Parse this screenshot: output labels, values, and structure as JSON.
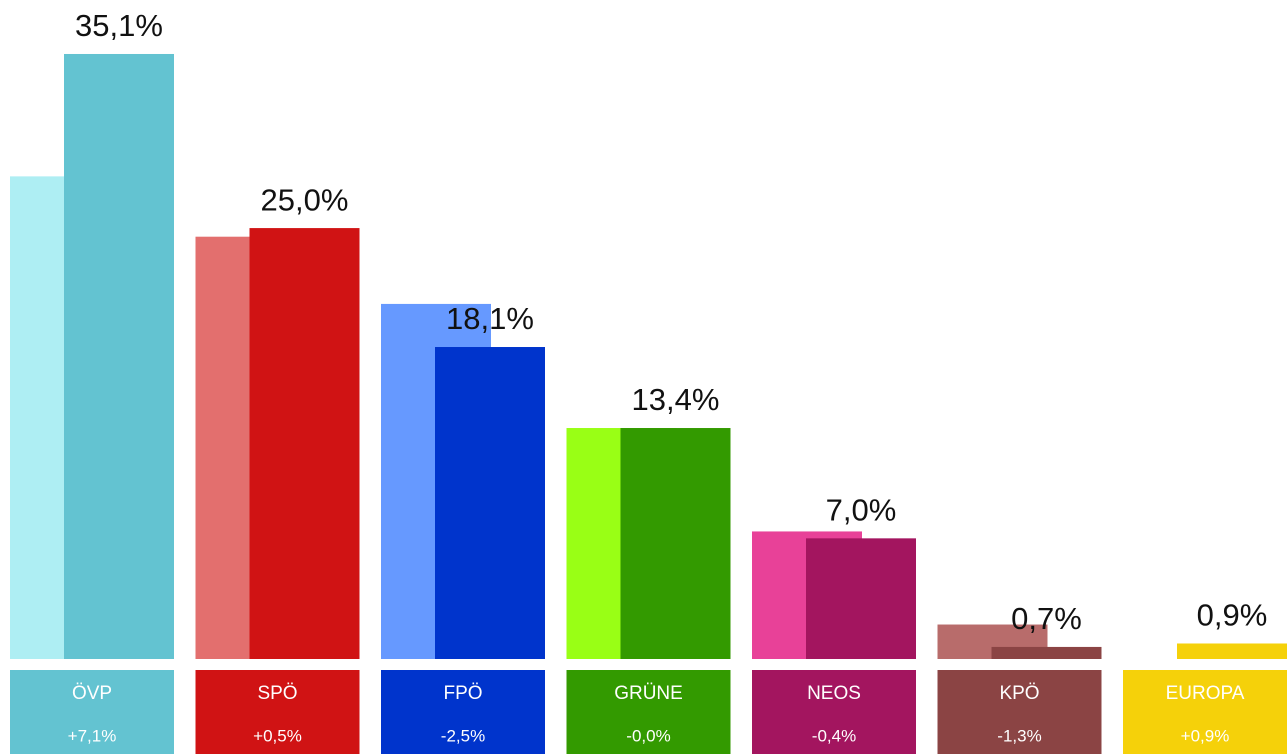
{
  "chart_data": {
    "type": "bar",
    "categories": [
      "ÖVP",
      "SPÖ",
      "FPÖ",
      "GRÜNE",
      "NEOS",
      "KPÖ",
      "EUROPA"
    ],
    "values": [
      35.1,
      25.0,
      18.1,
      13.4,
      7.0,
      0.7,
      0.9
    ],
    "value_labels": [
      "35,1%",
      "25,0%",
      "18,1%",
      "13,4%",
      "7,0%",
      "0,7%",
      "0,9%"
    ],
    "previous_values": [
      28.0,
      24.5,
      20.6,
      13.4,
      7.4,
      2.0,
      0
    ],
    "changes": [
      7.1,
      0.5,
      -2.5,
      0,
      -0.4,
      -1.3,
      0.9
    ],
    "change_labels": [
      "+7,1%",
      "+0,5%",
      "-2,5%",
      "-0,0%",
      "-0,4%",
      "-1,3%",
      "+0,9%"
    ],
    "colors": [
      "#63c3d1",
      "#d01314",
      "#0034cc",
      "#339a00",
      "#a3155f",
      "#8b4444",
      "#f5d10a"
    ],
    "previous_colors": [
      "#aeeef3",
      "#e36f6e",
      "#6699ff",
      "#99ff15",
      "#e84198",
      "#b86c6b",
      "#f9e06a"
    ],
    "ylim": [
      0,
      38
    ]
  }
}
